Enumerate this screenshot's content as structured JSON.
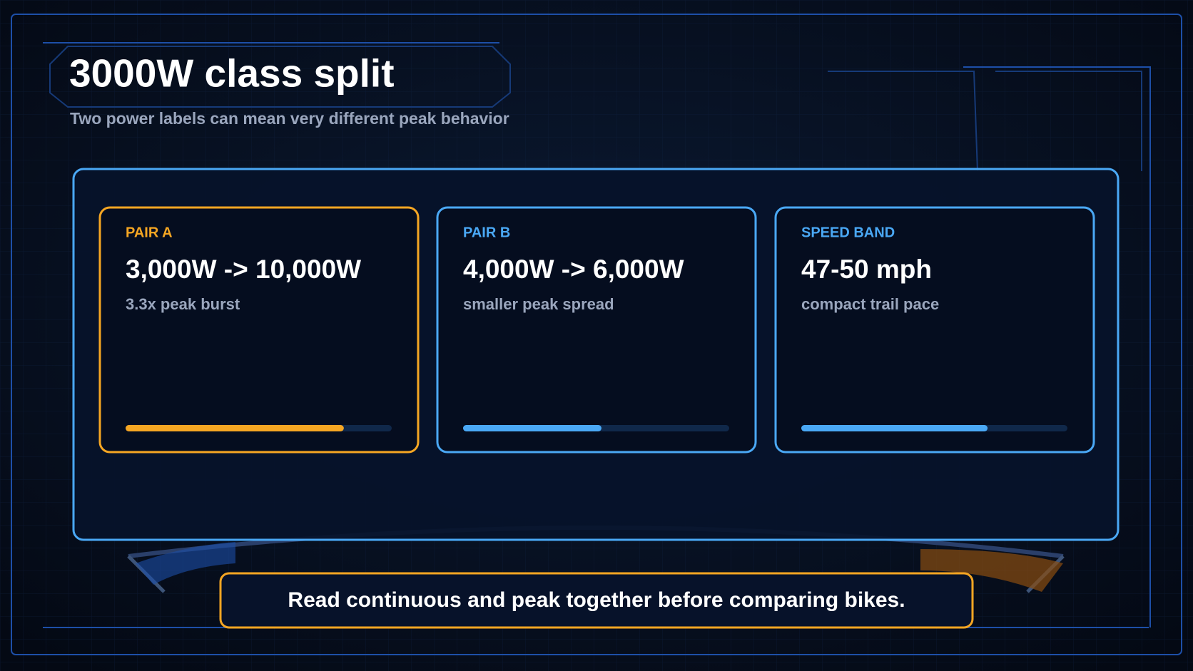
{
  "header": {
    "title": "3000W class split",
    "subtitle": "Two power labels can mean very different peak behavior"
  },
  "cards": [
    {
      "label": "PAIR A",
      "value": "3,000W -> 10,000W",
      "note": "3.3x peak burst",
      "progress": 0.82,
      "color": "#f5a623"
    },
    {
      "label": "PAIR B",
      "value": "4,000W -> 6,000W",
      "note": "smaller peak spread",
      "progress": 0.52,
      "color": "#4aa8f5"
    },
    {
      "label": "SPEED BAND",
      "value": "47-50 mph",
      "note": "compact trail pace",
      "progress": 0.7,
      "color": "#4aa8f5"
    }
  ],
  "footer": {
    "note": "Read continuous and peak together before comparing bikes."
  }
}
